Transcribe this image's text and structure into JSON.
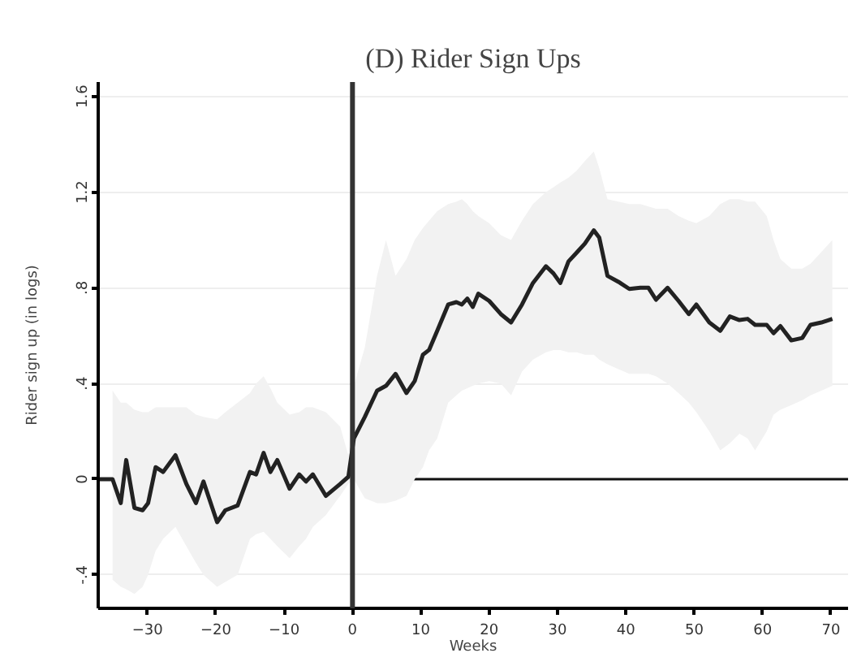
{
  "chart_data": {
    "type": "line",
    "title": "(D) Rider Sign Ups",
    "xlabel": "Weeks",
    "ylabel": "Rider sign up (in logs)",
    "x": [
      -37.1,
      -35.1,
      -33.9,
      -33.1,
      -31.9,
      -30.7,
      -29.9,
      -28.8,
      -27.7,
      -25.9,
      -24.3,
      -22.9,
      -21.8,
      -19.8,
      -18.6,
      -16.8,
      -15,
      -14.1,
      -13,
      -12,
      -11,
      -9.2,
      -7.8,
      -6.8,
      -5.8,
      -3.9,
      -1.8,
      -0.6,
      0.2,
      1.8,
      3.6,
      4.9,
      6.3,
      7.9,
      9.1,
      10.3,
      11.2,
      12.4,
      14,
      15.2,
      16,
      16.8,
      17.6,
      18.4,
      20,
      21.7,
      23.2,
      24.8,
      26.4,
      28.3,
      29.4,
      30.4,
      31.6,
      32.8,
      34,
      35.3,
      36.1,
      37.3,
      38.9,
      40.5,
      42.1,
      43.3,
      44.4,
      46.1,
      47.7,
      49.2,
      50.3,
      52.2,
      53.8,
      55.2,
      56.6,
      57.8,
      58.9,
      60.6,
      61.6,
      62.6,
      64.2,
      65.8,
      67,
      68.6,
      70.2
    ],
    "series": [
      {
        "color": "#222222",
        "values": [
          0.0,
          0.0,
          -0.1,
          0.08,
          -0.12,
          -0.13,
          -0.1,
          0.05,
          0.03,
          0.1,
          -0.02,
          -0.1,
          -0.01,
          -0.18,
          -0.13,
          -0.11,
          0.03,
          0.02,
          0.11,
          0.03,
          0.08,
          -0.04,
          0.02,
          -0.01,
          0.02,
          -0.07,
          -0.02,
          0.01,
          0.17,
          0.26,
          0.37,
          0.39,
          0.44,
          0.36,
          0.41,
          0.52,
          0.54,
          0.62,
          0.73,
          0.74,
          0.73,
          0.755,
          0.72,
          0.775,
          0.745,
          0.69,
          0.655,
          0.73,
          0.82,
          0.89,
          0.86,
          0.82,
          0.91,
          0.947,
          0.985,
          1.04,
          1.01,
          0.85,
          0.825,
          0.795,
          0.8,
          0.8,
          0.75,
          0.8,
          0.745,
          0.69,
          0.73,
          0.655,
          0.62,
          0.68,
          0.665,
          0.67,
          0.645,
          0.645,
          0.61,
          0.64,
          0.58,
          0.59,
          0.645,
          0.655,
          0.67
        ],
        "lower": [
          null,
          -0.42,
          -0.45,
          -0.46,
          -0.48,
          -0.45,
          -0.4,
          -0.3,
          -0.25,
          -0.2,
          -0.28,
          -0.35,
          -0.4,
          -0.45,
          -0.43,
          -0.4,
          -0.25,
          -0.23,
          -0.22,
          -0.25,
          -0.28,
          -0.33,
          -0.28,
          -0.25,
          -0.2,
          -0.15,
          -0.07,
          -0.02,
          0.0,
          -0.08,
          -0.1,
          -0.1,
          -0.09,
          -0.07,
          0.0,
          0.05,
          0.12,
          0.17,
          0.32,
          0.35,
          0.37,
          0.38,
          0.39,
          0.4,
          0.41,
          0.4,
          0.35,
          0.45,
          0.5,
          0.53,
          0.54,
          0.54,
          0.53,
          0.53,
          0.52,
          0.52,
          0.5,
          0.48,
          0.46,
          0.44,
          0.44,
          0.44,
          0.43,
          0.4,
          0.36,
          0.32,
          0.28,
          0.2,
          0.12,
          0.15,
          0.19,
          0.17,
          0.12,
          0.2,
          0.27,
          0.29,
          0.31,
          0.33,
          0.35,
          0.37,
          0.39
        ],
        "upper": [
          null,
          0.37,
          0.32,
          0.32,
          0.29,
          0.28,
          0.28,
          0.3,
          0.3,
          0.3,
          0.3,
          0.27,
          0.26,
          0.25,
          0.28,
          0.32,
          0.36,
          0.4,
          0.43,
          0.38,
          0.32,
          0.27,
          0.28,
          0.3,
          0.3,
          0.28,
          0.22,
          0.1,
          0.39,
          0.55,
          0.85,
          1.0,
          0.85,
          0.92,
          1.0,
          1.05,
          1.08,
          1.12,
          1.15,
          1.16,
          1.17,
          1.15,
          1.12,
          1.1,
          1.07,
          1.02,
          1.0,
          1.08,
          1.15,
          1.2,
          1.22,
          1.24,
          1.26,
          1.29,
          1.33,
          1.37,
          1.3,
          1.17,
          1.16,
          1.15,
          1.15,
          1.14,
          1.13,
          1.13,
          1.1,
          1.08,
          1.07,
          1.1,
          1.15,
          1.17,
          1.17,
          1.16,
          1.16,
          1.1,
          1.0,
          0.92,
          0.88,
          0.88,
          0.9,
          0.95,
          1.0
        ]
      }
    ],
    "xlim": [
      -37.2,
      72.5
    ],
    "xticks": [
      -30,
      -20,
      -10,
      0,
      10,
      20,
      30,
      40,
      50,
      60,
      70
    ],
    "ylim": [
      -0.54,
      1.66
    ],
    "yticks": [
      {
        "value": -0.4,
        "label": "-.4"
      },
      {
        "value": 0,
        "label": "0"
      },
      {
        "value": 0.4,
        "label": ".4"
      },
      {
        "value": 0.8,
        "label": ".8"
      },
      {
        "value": 1.2,
        "label": "1.2"
      },
      {
        "value": 1.6,
        "label": "1.6"
      }
    ],
    "ref_lines": [
      {
        "axis": "y",
        "value": 0,
        "label": null,
        "color": "#111111"
      },
      {
        "axis": "x",
        "value": 0,
        "label": null,
        "color": "#333333"
      }
    ],
    "grid": "y",
    "marker": "none",
    "line_style": "solid"
  }
}
